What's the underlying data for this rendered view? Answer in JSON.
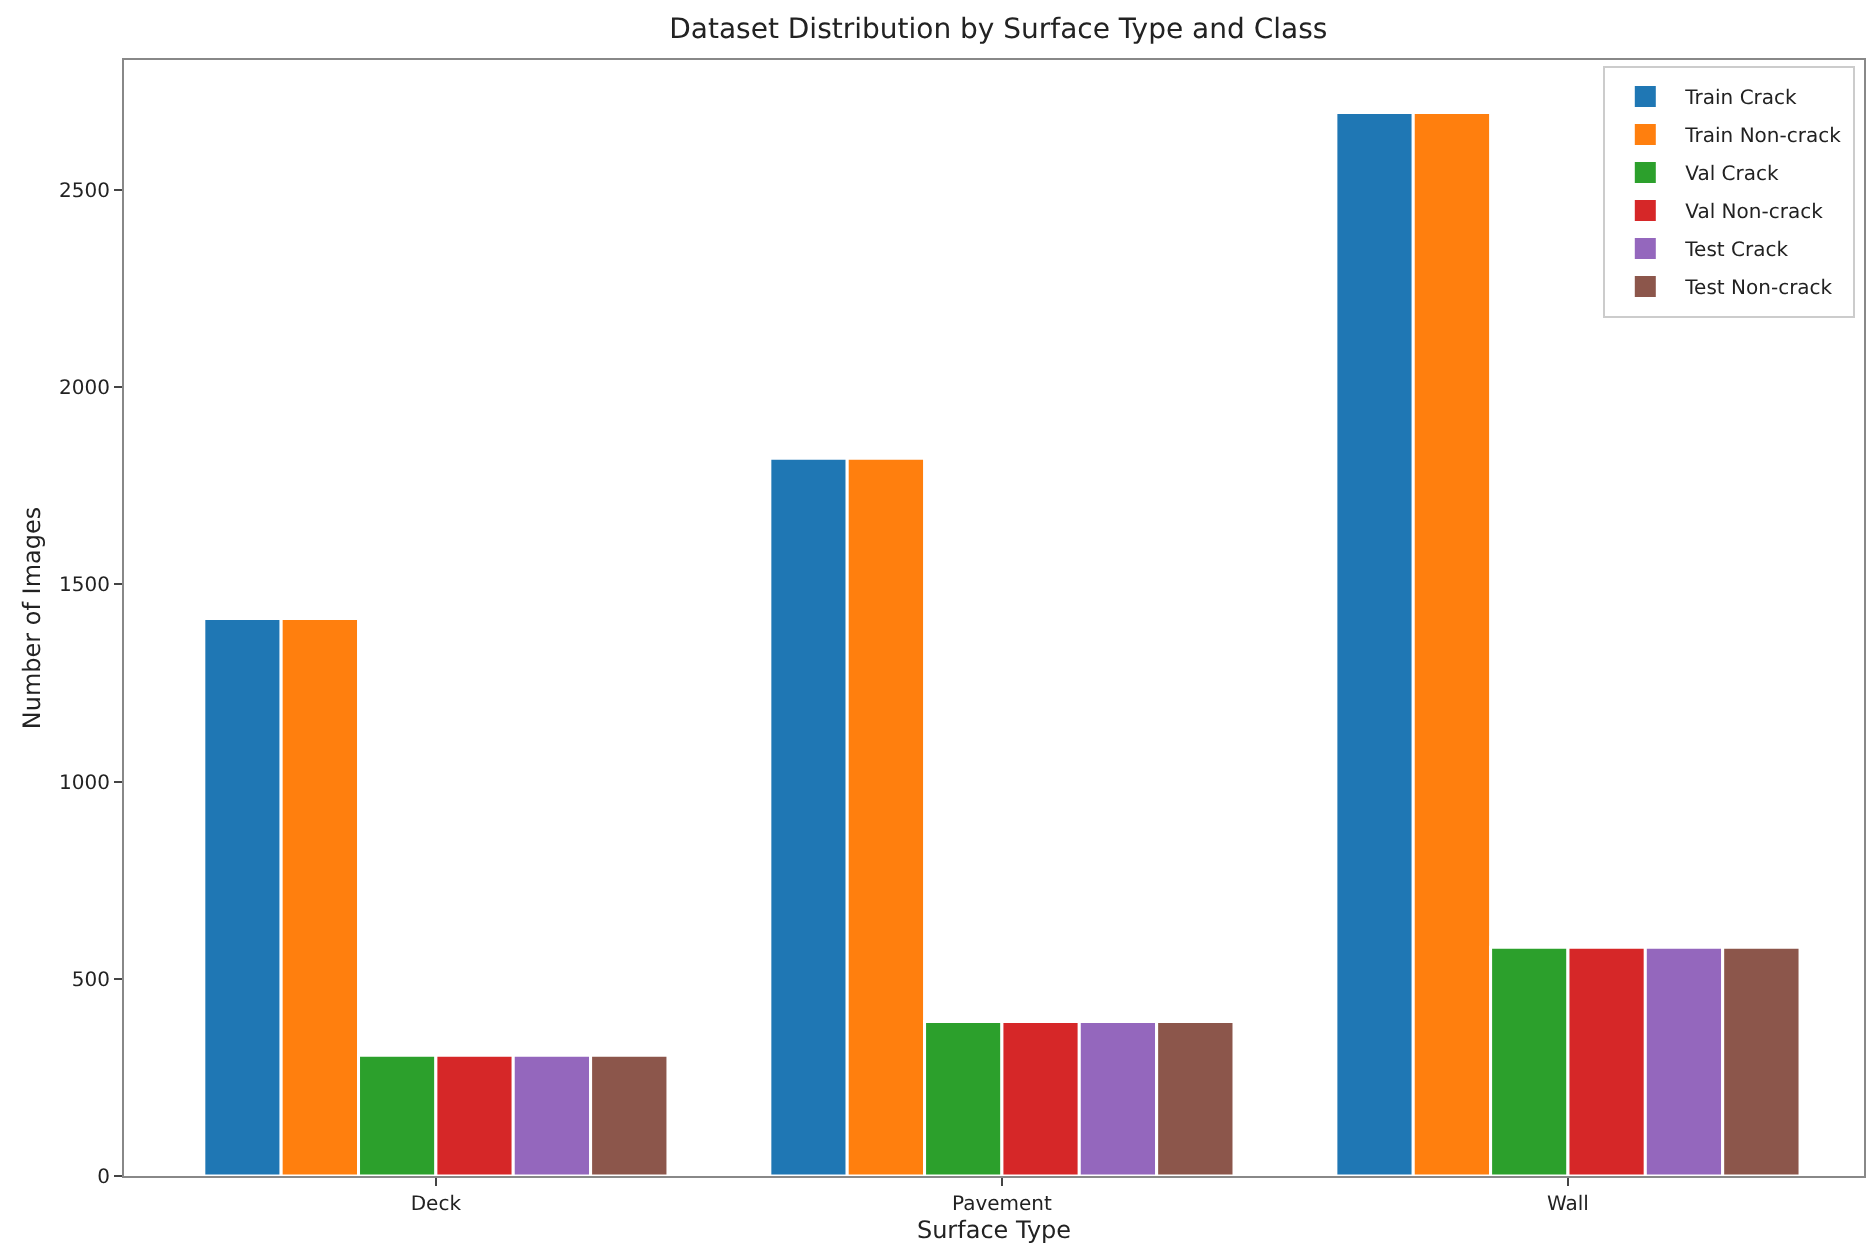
{
  "chart_data": {
    "type": "bar",
    "title": "Dataset Distribution by Surface Type and Class",
    "xlabel": "Surface Type",
    "ylabel": "Number of Images",
    "categories": [
      "Deck",
      "Pavement",
      "Wall"
    ],
    "series": [
      {
        "name": "Train Crack",
        "color": "#1f77b4",
        "values": [
          1414,
          1820,
          2697
        ]
      },
      {
        "name": "Train Non-crack",
        "color": "#ff7f0e",
        "values": [
          1414,
          1820,
          2697
        ]
      },
      {
        "name": "Val Crack",
        "color": "#2ca02c",
        "values": [
          306,
          392,
          580
        ]
      },
      {
        "name": "Val Non-crack",
        "color": "#d62728",
        "values": [
          306,
          392,
          580
        ]
      },
      {
        "name": "Test Crack",
        "color": "#9467bd",
        "values": [
          306,
          392,
          580
        ]
      },
      {
        "name": "Test Non-crack",
        "color": "#8c564b",
        "values": [
          306,
          392,
          580
        ]
      }
    ],
    "ylim": [
      0,
      2830
    ],
    "yticks": [
      0,
      500,
      1000,
      1500,
      2000,
      2500
    ],
    "legend": "top right"
  }
}
